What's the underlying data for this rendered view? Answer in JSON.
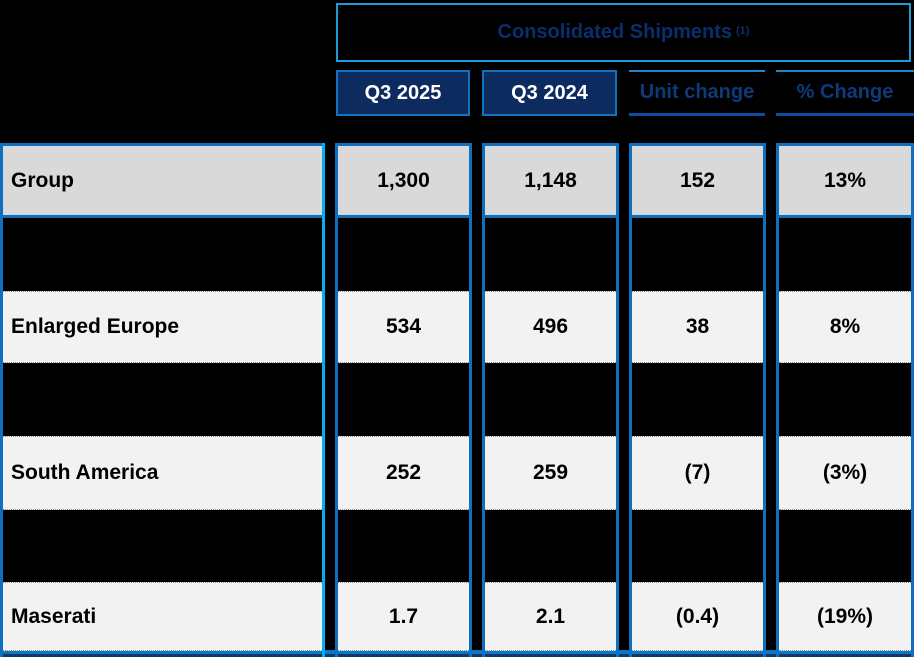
{
  "header": {
    "title": "Consolidated Shipments",
    "footnote_marker": "(1)"
  },
  "columns": [
    {
      "label": "Q3 2025"
    },
    {
      "label": "Q3 2024"
    },
    {
      "label": "Unit change"
    },
    {
      "label": "% Change"
    }
  ],
  "rows": [
    {
      "label": "Group",
      "values": [
        "1,300",
        "1,148",
        "152",
        "13%"
      ],
      "highlight": "gray"
    },
    {
      "label": "Enlarged Europe",
      "values": [
        "534",
        "496",
        "38",
        "8%"
      ],
      "highlight": "light"
    },
    {
      "label": "South America",
      "values": [
        "252",
        "259",
        "(7)",
        "(3%)"
      ],
      "highlight": "light"
    },
    {
      "label": "Maserati",
      "values": [
        "1.7",
        "2.1",
        "(0.4)",
        "(19%)"
      ],
      "highlight": "light"
    }
  ],
  "colors": {
    "background": "#000000",
    "header_box_border": "#1e9ad6",
    "title_text": "#0a2e6c",
    "navy_header_bg": "#0d2b5f",
    "navy_header_text": "#ffffff",
    "column_border_blue": "#0d6fbd",
    "label_column_right_border": "#00b0f0",
    "underline_header_text": "#0d3a7a",
    "underline_bottom": "#0d4f9e",
    "gray_row_bg": "#d9d9d9",
    "light_row_bg": "#f2f2f2",
    "bottom_bar": "#0b76c6"
  }
}
